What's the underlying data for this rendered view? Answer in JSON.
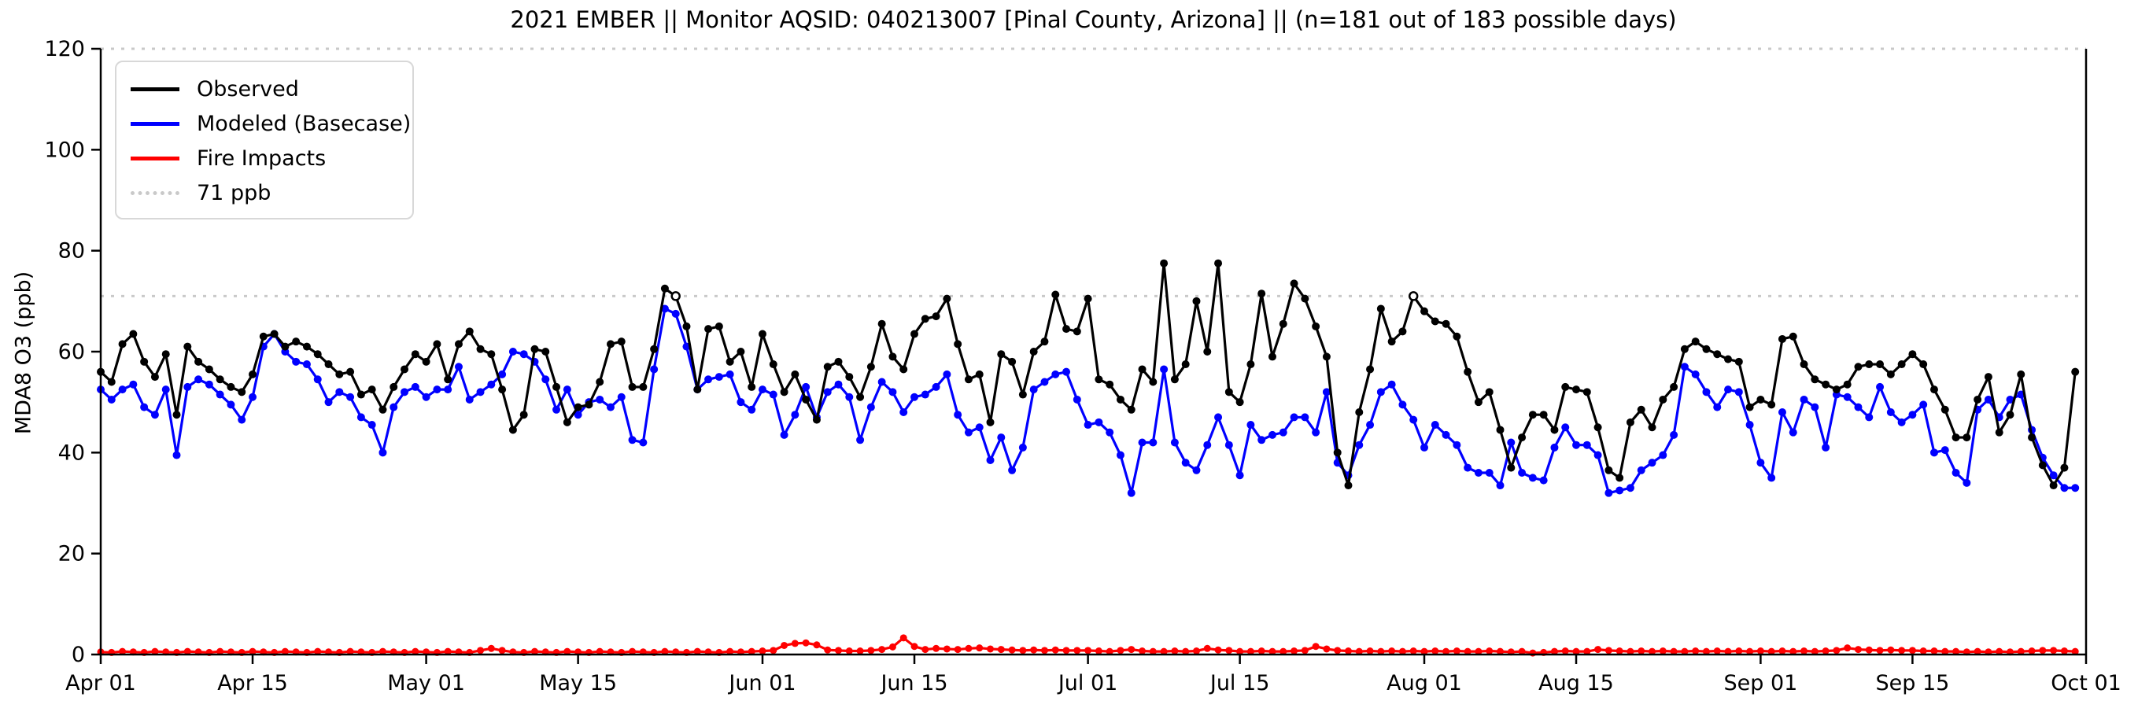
{
  "chart": {
    "title": "2021 EMBER || Monitor AQSID: 040213007 [Pinal County, Arizona] || (n=181 out of 183 possible days)",
    "y_label": "MDA8 O3 (ppb)",
    "background_color": "#ffffff",
    "axis_color": "#000000"
  },
  "legend": {
    "items": [
      {
        "label": "Observed",
        "color": "#000000",
        "style": "solid"
      },
      {
        "label": "Modeled (Basecase)",
        "color": "#0000ff",
        "style": "solid"
      },
      {
        "label": "Fire Impacts",
        "color": "#ff0000",
        "style": "solid"
      },
      {
        "label": "71 ppb",
        "color": "#c9c9c9",
        "style": "dotted"
      }
    ]
  },
  "chart_data": {
    "type": "line",
    "title": "2021 EMBER || Monitor AQSID: 040213007 [Pinal County, Arizona] || (n=181 out of 183 possible days)",
    "xlabel": "",
    "ylabel": "MDA8 O3 (ppb)",
    "ylim": [
      0,
      120
    ],
    "y_ticks": [
      0,
      20,
      40,
      60,
      80,
      100,
      120
    ],
    "x_start_label": "Apr 01",
    "x_end_label": "Oct 01",
    "n_days": 183,
    "x_ticks": [
      {
        "label": "Apr 01",
        "day": 0
      },
      {
        "label": "Apr 15",
        "day": 14
      },
      {
        "label": "May 01",
        "day": 30
      },
      {
        "label": "May 15",
        "day": 44
      },
      {
        "label": "Jun 01",
        "day": 61
      },
      {
        "label": "Jun 15",
        "day": 75
      },
      {
        "label": "Jul 01",
        "day": 91
      },
      {
        "label": "Jul 15",
        "day": 105
      },
      {
        "label": "Aug 01",
        "day": 122
      },
      {
        "label": "Aug 15",
        "day": 136
      },
      {
        "label": "Sep 01",
        "day": 153
      },
      {
        "label": "Sep 15",
        "day": 167
      },
      {
        "label": "Oct 01",
        "day": 183
      }
    ],
    "threshold": {
      "value": 71,
      "label": "71 ppb",
      "color": "#c9c9c9"
    },
    "top_reference_value": 120,
    "series": [
      {
        "name": "Observed",
        "color": "#000000",
        "values": [
          56,
          54,
          61.5,
          63.5,
          58,
          55,
          59.5,
          47.5,
          61,
          58,
          56.5,
          54.5,
          53,
          52,
          55.5,
          63,
          63.5,
          61,
          62,
          61,
          59.5,
          57.5,
          55.5,
          56,
          51.5,
          52.5,
          48.5,
          53,
          56.5,
          59.5,
          58,
          61.5,
          54.5,
          61.5,
          64,
          60.5,
          59.5,
          52.5,
          44.5,
          47.5,
          60.5,
          60,
          53,
          46,
          49,
          49.5,
          54,
          61.5,
          62,
          53,
          53,
          60.5,
          72.5,
          71,
          65,
          52.5,
          64.5,
          65,
          58,
          60,
          53,
          63.5,
          57.5,
          52,
          55.5,
          50.5,
          46.5,
          57,
          58,
          55,
          51,
          57,
          65.5,
          59,
          56.5,
          63.5,
          66.5,
          67,
          70.5,
          61.5,
          54.5,
          55.5,
          46,
          59.5,
          58,
          51.5,
          60,
          62,
          71.3,
          64.5,
          64,
          70.5,
          54.5,
          53.5,
          50.5,
          48.5,
          56.5,
          54,
          77.5,
          54.5,
          57.5,
          70,
          60,
          77.5,
          52,
          50,
          57.5,
          71.5,
          59,
          65.5,
          73.5,
          70.5,
          65,
          59,
          40,
          33.5,
          48,
          56.5,
          68.5,
          62,
          64,
          71,
          68,
          66,
          65.5,
          63,
          56,
          50,
          52,
          44.5,
          37,
          43,
          47.5,
          47.5,
          44.5,
          53,
          52.5,
          52,
          45,
          36.5,
          35,
          46,
          48.5,
          45,
          50.5,
          53,
          60.5,
          62,
          60.5,
          59.5,
          58.5,
          58,
          49,
          50.5,
          49.5,
          62.5,
          63,
          57.5,
          54.5,
          53.5,
          52.5,
          53.5,
          57,
          57.5,
          57.5,
          55.5,
          57.5,
          59.5,
          57.5,
          52.5,
          48.5,
          43,
          43,
          50.5,
          55,
          44,
          47.5,
          55.5,
          43,
          37.5,
          33.5,
          37,
          56
        ]
      },
      {
        "name": "Modeled (Basecase)",
        "color": "#0000ff",
        "values": [
          52.5,
          50.5,
          52.5,
          53.5,
          49,
          47.5,
          52.5,
          39.5,
          53,
          54.5,
          53.5,
          51.5,
          49.5,
          46.5,
          51,
          61,
          63.5,
          60,
          58,
          57.5,
          54.5,
          50,
          52,
          51,
          47,
          45.5,
          40,
          49,
          52,
          53,
          51,
          52.5,
          52.5,
          57,
          50.5,
          52,
          53.5,
          55.5,
          60,
          59.5,
          58,
          54.5,
          48.5,
          52.5,
          47.5,
          50,
          50.5,
          49,
          51,
          42.5,
          42,
          56.5,
          68.5,
          67.5,
          61,
          52.5,
          54.5,
          55,
          55.5,
          50,
          48.5,
          52.5,
          51.5,
          43.5,
          47.5,
          53,
          47,
          52,
          53.5,
          51,
          42.5,
          49,
          54,
          52,
          48,
          51,
          51.5,
          53,
          55.5,
          47.5,
          44,
          45,
          38.5,
          43,
          36.5,
          41,
          52.5,
          54,
          55.5,
          56,
          50.5,
          45.5,
          46,
          44,
          39.5,
          32,
          42,
          42,
          56.5,
          42,
          38,
          36.5,
          41.5,
          47,
          41.5,
          35.5,
          45.5,
          42.5,
          43.5,
          44,
          47,
          47,
          44,
          52,
          38,
          35.5,
          41.5,
          45.5,
          52,
          53.5,
          49.5,
          46.5,
          41,
          45.5,
          43.5,
          41.5,
          37,
          36,
          36,
          33.5,
          42,
          36,
          35,
          34.5,
          41,
          45,
          41.5,
          41.5,
          39.5,
          32,
          32.5,
          33,
          36.5,
          38,
          39.5,
          43.5,
          57,
          55.5,
          52,
          49,
          52.5,
          52,
          45.5,
          38,
          35,
          48,
          44,
          50.5,
          49,
          41,
          51.5,
          51,
          49,
          47,
          53,
          48,
          46,
          47.5,
          49.5,
          40,
          40.5,
          36,
          34,
          48.5,
          50.5,
          47,
          50.5,
          51.5,
          44.5,
          39,
          35.5,
          33,
          33
        ]
      },
      {
        "name": "Fire Impacts",
        "color": "#ff0000",
        "values": [
          0.5,
          0.4,
          0.6,
          0.5,
          0.4,
          0.6,
          0.5,
          0.4,
          0.6,
          0.5,
          0.4,
          0.6,
          0.5,
          0.4,
          0.6,
          0.5,
          0.4,
          0.6,
          0.5,
          0.4,
          0.6,
          0.5,
          0.4,
          0.6,
          0.5,
          0.4,
          0.6,
          0.5,
          0.4,
          0.6,
          0.5,
          0.4,
          0.6,
          0.5,
          0.4,
          0.8,
          1.2,
          0.8,
          0.5,
          0.4,
          0.6,
          0.5,
          0.4,
          0.6,
          0.5,
          0.4,
          0.6,
          0.5,
          0.4,
          0.6,
          0.5,
          0.4,
          0.6,
          0.5,
          0.4,
          0.6,
          0.5,
          0.4,
          0.6,
          0.5,
          0.6,
          0.7,
          0.8,
          1.8,
          2.2,
          2.3,
          1.9,
          0.9,
          0.8,
          0.7,
          0.7,
          0.8,
          1.0,
          1.5,
          3.3,
          1.6,
          1.0,
          1.2,
          1.1,
          1.0,
          1.2,
          1.3,
          1.1,
          1.0,
          0.9,
          0.8,
          0.9,
          0.8,
          0.9,
          0.8,
          0.8,
          0.8,
          0.7,
          0.6,
          0.8,
          1.0,
          0.7,
          0.6,
          0.6,
          0.7,
          0.6,
          0.7,
          1.2,
          0.9,
          0.8,
          0.6,
          0.6,
          0.7,
          0.6,
          0.6,
          0.7,
          0.8,
          1.6,
          1.1,
          0.8,
          0.7,
          0.6,
          0.7,
          0.6,
          0.7,
          0.6,
          0.7,
          0.6,
          0.7,
          0.6,
          0.7,
          0.6,
          0.6,
          0.7,
          0.6,
          0.5,
          0.6,
          0.3,
          0.4,
          0.6,
          0.7,
          0.6,
          0.6,
          1.0,
          0.8,
          0.7,
          0.6,
          0.7,
          0.6,
          0.7,
          0.6,
          0.6,
          0.7,
          0.6,
          0.7,
          0.6,
          0.7,
          0.6,
          0.7,
          0.6,
          0.7,
          0.6,
          0.7,
          0.6,
          0.7,
          0.8,
          1.3,
          1.0,
          0.9,
          0.8,
          0.9,
          0.8,
          0.8,
          0.7,
          0.7,
          0.6,
          0.6,
          0.5,
          0.6,
          0.5,
          0.6,
          0.5,
          0.6,
          0.7,
          0.8,
          0.8,
          0.7,
          0.6
        ]
      }
    ],
    "legend_position": "upper left",
    "grid": false
  }
}
